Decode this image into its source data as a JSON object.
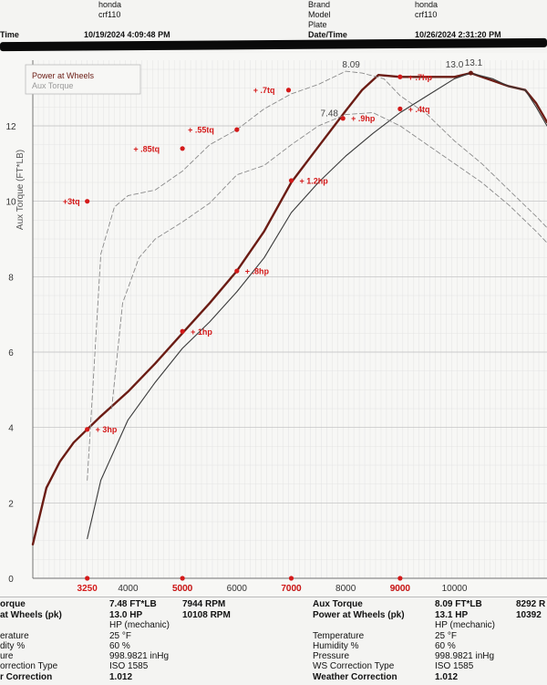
{
  "header": {
    "left": {
      "brand_value": "honda",
      "model_value": "crf110",
      "time_label": "Time",
      "time_value": "10/19/2024 4:09:48 PM"
    },
    "right": {
      "brand_label": "Brand",
      "brand_value": "honda",
      "model_label": "Model",
      "model_value": "crf110",
      "plate_label": "Plate",
      "datetime_label": "Date/Time",
      "datetime_value": "10/26/2024 2:31:20 PM"
    }
  },
  "colors": {
    "power_dark": "#6b1c14",
    "power_light": "#3a3a3a",
    "torque_dashed": "#8a8a8a",
    "annotation": "#d41a1a",
    "grid": "#c8c8c8"
  },
  "chart_data": {
    "type": "line",
    "xlabel": "",
    "ylabel": "Aux Torque (FT*LB)",
    "xlim": [
      2250,
      11700
    ],
    "ylim": [
      0,
      13.5
    ],
    "x_ticks": [
      4000,
      5000,
      6000,
      7000,
      8000,
      9000,
      10000
    ],
    "x_tick_labels": [
      "4000",
      "5000",
      "6000",
      "7000",
      "8000",
      "9000",
      "10000"
    ],
    "y_ticks": [
      0,
      2,
      4,
      6,
      8,
      10,
      12
    ],
    "y_tick_labels": [
      "0",
      "2",
      "4",
      "6",
      "8",
      "10",
      "12"
    ],
    "x_marker_labels": [
      {
        "x": 3250,
        "label": "3250"
      },
      {
        "x": 5000,
        "label": "5000"
      },
      {
        "x": 7000,
        "label": "7000"
      },
      {
        "x": 9000,
        "label": "9000"
      }
    ],
    "legend": {
      "position": "top-left",
      "entries": [
        "Power at Wheels",
        "Aux Torque"
      ]
    },
    "series": [
      {
        "name": "Power at Wheels",
        "style": "solid-thick",
        "points": [
          [
            2250,
            0.9
          ],
          [
            2500,
            2.4
          ],
          [
            2750,
            3.1
          ],
          [
            3000,
            3.6
          ],
          [
            3250,
            3.95
          ],
          [
            3500,
            4.3
          ],
          [
            4000,
            4.95
          ],
          [
            4500,
            5.7
          ],
          [
            5000,
            6.5
          ],
          [
            5500,
            7.3
          ],
          [
            6000,
            8.15
          ],
          [
            6500,
            9.2
          ],
          [
            7000,
            10.5
          ],
          [
            7500,
            11.45
          ],
          [
            8000,
            12.4
          ],
          [
            8300,
            12.95
          ],
          [
            8600,
            13.35
          ],
          [
            9000,
            13.3
          ],
          [
            9500,
            13.3
          ],
          [
            10000,
            13.3
          ],
          [
            10300,
            13.4
          ],
          [
            10700,
            13.2
          ],
          [
            11000,
            13.05
          ],
          [
            11300,
            12.95
          ],
          [
            11500,
            12.6
          ],
          [
            11700,
            12.1
          ]
        ]
      },
      {
        "name": "",
        "style": "solid-thin",
        "points": [
          [
            3250,
            1.05
          ],
          [
            3500,
            2.6
          ],
          [
            4000,
            4.2
          ],
          [
            4500,
            5.2
          ],
          [
            5000,
            6.1
          ],
          [
            5500,
            6.8
          ],
          [
            6000,
            7.6
          ],
          [
            6500,
            8.5
          ],
          [
            7000,
            9.7
          ],
          [
            7500,
            10.5
          ],
          [
            8000,
            11.2
          ],
          [
            8500,
            11.8
          ],
          [
            9000,
            12.35
          ],
          [
            9500,
            12.8
          ],
          [
            10000,
            13.25
          ],
          [
            10300,
            13.4
          ],
          [
            10700,
            13.25
          ],
          [
            11000,
            13.05
          ],
          [
            11300,
            12.95
          ],
          [
            11500,
            12.5
          ],
          [
            11700,
            12.0
          ]
        ]
      },
      {
        "name": "Aux Torque",
        "style": "dashed",
        "points": [
          [
            3250,
            2.6
          ],
          [
            3350,
            5.0
          ],
          [
            3500,
            8.6
          ],
          [
            3750,
            9.85
          ],
          [
            4000,
            10.15
          ],
          [
            4500,
            10.3
          ],
          [
            5000,
            10.8
          ],
          [
            5500,
            11.5
          ],
          [
            6000,
            11.9
          ],
          [
            6500,
            12.45
          ],
          [
            7000,
            12.85
          ],
          [
            7500,
            13.1
          ],
          [
            8000,
            13.45
          ],
          [
            8300,
            13.4
          ],
          [
            8700,
            13.25
          ],
          [
            9000,
            12.8
          ],
          [
            9500,
            12.3
          ],
          [
            10000,
            11.6
          ],
          [
            10500,
            11.0
          ],
          [
            11000,
            10.3
          ],
          [
            11500,
            9.6
          ],
          [
            11700,
            9.3
          ]
        ]
      },
      {
        "name": "",
        "style": "dashed",
        "points": [
          [
            3700,
            4.5
          ],
          [
            3900,
            7.3
          ],
          [
            4200,
            8.5
          ],
          [
            4500,
            9.0
          ],
          [
            5000,
            9.45
          ],
          [
            5500,
            9.95
          ],
          [
            6000,
            10.7
          ],
          [
            6500,
            10.95
          ],
          [
            7000,
            11.5
          ],
          [
            7500,
            12.0
          ],
          [
            8000,
            12.3
          ],
          [
            8500,
            12.35
          ],
          [
            9000,
            12.0
          ],
          [
            9500,
            11.5
          ],
          [
            10000,
            11.0
          ],
          [
            10500,
            10.5
          ],
          [
            11000,
            9.9
          ],
          [
            11500,
            9.2
          ],
          [
            11700,
            8.9
          ]
        ]
      }
    ],
    "peak_labels": [
      {
        "x": 8100,
        "y": 13.55,
        "label": "8.09"
      },
      {
        "x": 7700,
        "y": 12.25,
        "label": "7.48"
      },
      {
        "x": 10000,
        "y": 13.55,
        "label": "13.0"
      },
      {
        "x": 10350,
        "y": 13.6,
        "label": "13.1"
      }
    ],
    "annotations": [
      {
        "x": 3250,
        "y": 10.0,
        "label": "+3tq",
        "text_x": 2800
      },
      {
        "x": 5000,
        "y": 11.4,
        "label": "+ .85tq",
        "text_x": 4100
      },
      {
        "x": 6000,
        "y": 11.9,
        "label": "+ .55tq",
        "text_x": 5100
      },
      {
        "x": 6950,
        "y": 12.95,
        "label": "+ .7tq",
        "text_x": 6300
      },
      {
        "x": 9000,
        "y": 13.3,
        "label": "+ .7hp",
        "text_x": 9150
      },
      {
        "x": 7950,
        "y": 12.2,
        "label": "+ .9hp",
        "text_x": 8100
      },
      {
        "x": 9000,
        "y": 12.45,
        "label": "+ .4tq",
        "text_x": 9150
      },
      {
        "x": 7000,
        "y": 10.55,
        "label": "+ 1.2hp",
        "text_x": 7150
      },
      {
        "x": 6000,
        "y": 8.15,
        "label": "+ .8hp",
        "text_x": 6150
      },
      {
        "x": 5000,
        "y": 6.55,
        "label": "+ 1hp",
        "text_x": 5150
      },
      {
        "x": 3250,
        "y": 3.95,
        "label": "+ 3hp",
        "text_x": 3400
      }
    ]
  },
  "footer": {
    "left": {
      "torque_label": "orque",
      "torque_value": "7.48 FT*LB",
      "torque_rpm": "7944 RPM",
      "power_label": "at Wheels (pk)",
      "power_value": "13.0 HP",
      "power_rpm": "10108 RPM",
      "power_sub": "HP (mechanic)",
      "temp_label": "erature",
      "temp_value": "25 °F",
      "hum_label": "dity %",
      "hum_value": "60 %",
      "pres_label": "ure",
      "pres_value": "998.9821 inHg",
      "corr_label": "orrection Type",
      "corr_value": "ISO 1585",
      "wcorr_label": "r Correction",
      "wcorr_value": "1.012"
    },
    "right": {
      "torque_label": "Aux Torque",
      "torque_value": "8.09 FT*LB",
      "torque_rpm": "8292 R",
      "power_label": "Power at Wheels (pk)",
      "power_value": "13.1 HP",
      "power_rpm": "10392",
      "power_sub": "HP (mechanic)",
      "temp_label": "Temperature",
      "temp_value": "25 °F",
      "hum_label": "Humidity %",
      "hum_value": "60 %",
      "pres_label": "Pressure",
      "pres_value": "998.9821 inHg",
      "corr_label": "WS Correction Type",
      "corr_value": "ISO 1585",
      "wcorr_label": "Weather Correction",
      "wcorr_value": "1.012"
    }
  }
}
